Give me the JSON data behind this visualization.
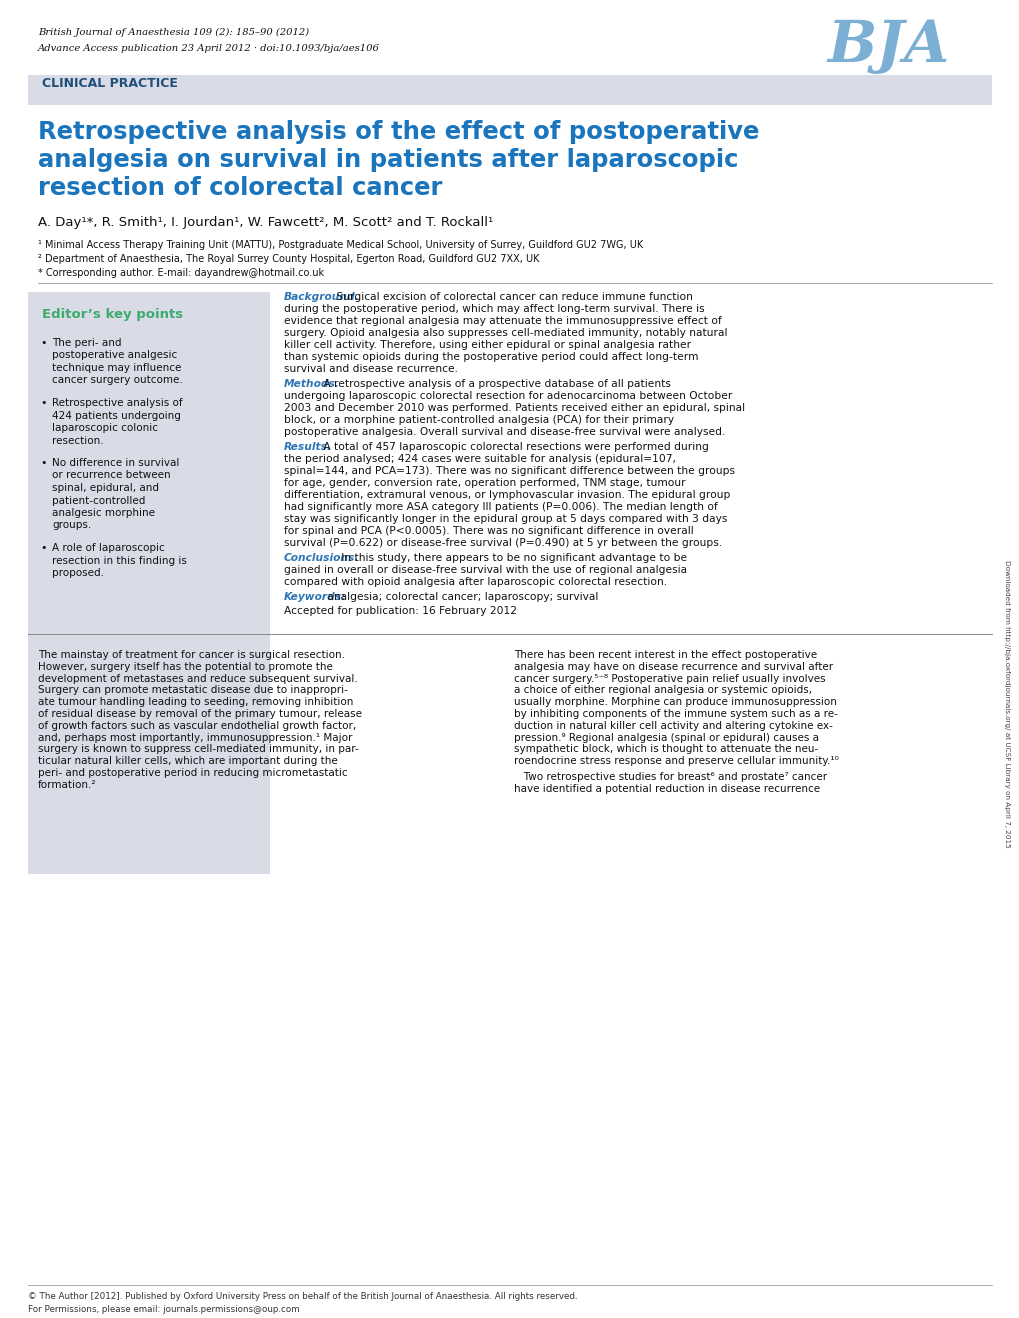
{
  "header_line1": "British Journal of Anaesthesia 109 (2): 185–90 (2012)",
  "header_line2": "Advance Access publication 23 April 2012 · doi:10.1093/bja/aes106",
  "bja_logo": "BJA",
  "section_label": "CLINICAL PRACTICE",
  "title_line1": "Retrospective analysis of the effect of postoperative",
  "title_line2": "analgesia on survival in patients after laparoscopic",
  "title_line3": "resection of colorectal cancer",
  "authors": "A. Day¹*, R. Smith¹, I. Jourdan¹, W. Fawcett², M. Scott² and T. Rockall¹",
  "affil1": "¹ Minimal Access Therapy Training Unit (MATTU), Postgraduate Medical School, University of Surrey, Guildford GU2 7WG, UK",
  "affil2": "² Department of Anaesthesia, The Royal Surrey County Hospital, Egerton Road, Guildford GU2 7XX, UK",
  "affil3": "* Corresponding author. E-mail: dayandrew@hotmail.co.uk",
  "editors_key_points_title": "Editor’s key points",
  "bullet_points": [
    "The peri- and\npostoperative analgesic\ntechnique may influence\ncancer surgery outcome.",
    "Retrospective analysis of\n424 patients undergoing\nlaparoscopic colonic\nresection.",
    "No difference in survival\nor recurrence between\nspinal, epidural, and\npatient-controlled\nanalgesic morphine\ngroups.",
    "A role of laparoscopic\nresection in this finding is\nproposed."
  ],
  "background_label": "Background.",
  "background_text": " Surgical excision of colorectal cancer can reduce immune function during the postoperative period, which may affect long-term survival. There is evidence that regional analgesia may attenuate the immunosuppressive effect of surgery. Opioid analgesia also suppresses cell-mediated immunity, notably natural killer cell activity. Therefore, using either epidural or spinal analgesia rather than systemic opioids during the postoperative period could affect long-term survival and disease recurrence.",
  "methods_label": "Methods.",
  "methods_text": " A retrospective analysis of a prospective database of all patients undergoing laparoscopic colorectal resection for adenocarcinoma between October 2003 and December 2010 was performed. Patients received either an epidural, spinal block, or a morphine patient-controlled analgesia (PCA) for their primary postoperative analgesia. Overall survival and disease-free survival were analysed.",
  "results_label": "Results.",
  "results_text": " A total of 457 laparoscopic colorectal resections were performed during the period analysed; 424 cases were suitable for analysis (epidural=107, spinal=144, and PCA=173). There was no significant difference between the groups for age, gender, conversion rate, operation performed, TNM stage, tumour differentiation, extramural venous, or lymphovascular invasion. The epidural group had significantly more ASA category III patients (P=0.006). The median length of stay was significantly longer in the epidural group at 5 days compared with 3 days for spinal and PCA (P<0.0005). There was no significant difference in overall survival (P=0.622) or disease-free survival (P=0.490) at 5 yr between the groups.",
  "conclusions_label": "Conclusions.",
  "conclusions_text": " In this study, there appears to be no significant advantage to be gained in overall or disease-free survival with the use of regional analgesia compared with opioid analgesia after laparoscopic colorectal resection.",
  "keywords_label": "Keywords:",
  "keywords_text": " analgesia; colorectal cancer; laparoscopy; survival",
  "accepted_text": "Accepted for publication: 16 February 2012",
  "body_col1_para1": "The mainstay of treatment for cancer is surgical resection.\nHowever, surgery itself has the potential to promote the\ndevelopment of metastases and reduce subsequent survival.\nSurgery can promote metastatic disease due to inappropri-\nate tumour handling leading to seeding, removing inhibition\nof residual disease by removal of the primary tumour, release\nof growth factors such as vascular endothelial growth factor,\nand, perhaps most importantly, immunosuppression.¹ Major\nsurgery is known to suppress cell-mediated immunity, in par-\nticular natural killer cells, which are important during the\nperi- and postoperative period in reducing micrometastatic\nformation.²",
  "body_col2_para1": "There has been recent interest in the effect postoperative\nanalgesia may have on disease recurrence and survival after\ncancer surgery.⁵⁻⁸ Postoperative pain relief usually involves\na choice of either regional analgesia or systemic opioids,\nusually morphine. Morphine can produce immunosuppression\nby inhibiting components of the immune system such as a re-\nduction in natural killer cell activity and altering cytokine ex-\npression.⁹ Regional analgesia (spinal or epidural) causes a\nsympathetic block, which is thought to attenuate the neu-\nroendocrine stress response and preserve cellular immunity.¹⁰",
  "body_col2_para2": "   Two retrospective studies for breast⁶ and prostate⁷ cancer\nhave identified a potential reduction in disease recurrence",
  "sidebar_text": "Downloaded from http://bja.oxfordjournals.org/ at UCSF Library on April 7, 2015",
  "copyright_line1": "© The Author [2012]. Published by Oxford University Press on behalf of the British Journal of Anaesthesia. All rights reserved.",
  "copyright_line2": "For Permissions, please email: journals.permissions@oup.com",
  "color_blue_title": "#1B75BC",
  "color_blue_label": "#2E75B6",
  "color_blue_dark": "#1F4E79",
  "color_green": "#3DAA6E",
  "color_section_bg": "#D9DCE6",
  "color_sidebar_bg": "#D9DCE6",
  "color_bja": "#7BAFD4"
}
